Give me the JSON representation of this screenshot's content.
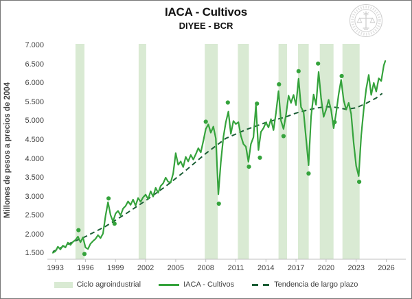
{
  "window": {
    "background": "#ffffff",
    "border_color": "#767676"
  },
  "header": {
    "title": "IACA - Cultivos",
    "subtitle": "DIYEE - BCR",
    "logo_name": "bolsa-de-comercio-de-rosario-seal"
  },
  "colors": {
    "series_line": "#35a33c",
    "trend_line": "#1b5e35",
    "cycle_band": "#d9ead3",
    "axis": "#bfbfbf",
    "tick_text": "#404040"
  },
  "chart_data": {
    "type": "line",
    "title": "IACA - Cultivos",
    "subtitle": "DIYEE - BCR",
    "xlabel": "",
    "ylabel": "Millones de pesos a precios de 2004",
    "grid": false,
    "legend_position": "bottom",
    "xlim": [
      1992.2,
      2027.95
    ],
    "ylim": [
      1.35,
      7.07
    ],
    "x_tick_labels": [
      "1993",
      "1996",
      "1999",
      "2002",
      "2005",
      "2008",
      "2011",
      "2014",
      "2017",
      "2020",
      "2023",
      "2026"
    ],
    "x_tick_values": [
      1993,
      1996,
      1999,
      2002,
      2005,
      2008,
      2011,
      2014,
      2017,
      2020,
      2023,
      2026
    ],
    "y_tick_labels": [
      "7.000",
      "6.500",
      "6.000",
      "5.500",
      "5.000",
      "4.500",
      "4.000",
      "3.500",
      "3.000",
      "2.500",
      "2.000",
      "1.500"
    ],
    "y_tick_values": [
      7.0,
      6.5,
      6.0,
      5.5,
      5.0,
      4.5,
      4.0,
      3.5,
      3.0,
      2.5,
      2.0,
      1.5
    ],
    "series": [
      {
        "name": "Ciclo agroindustrial",
        "type": "band",
        "color": "#d9ead3",
        "ranges": [
          [
            1995.0,
            1995.9
          ],
          [
            2001.3,
            2002.05
          ],
          [
            2007.9,
            2009.2
          ],
          [
            2011.2,
            2012.3
          ],
          [
            2015.25,
            2016.1
          ],
          [
            2017.2,
            2018.27
          ],
          [
            2019.37,
            2020.74
          ],
          [
            2021.63,
            2023.34
          ]
        ]
      },
      {
        "name": "IACA - Cultivos",
        "type": "line",
        "color": "#35a33c",
        "points": [
          [
            1992.75,
            1.52
          ],
          [
            1993,
            1.56
          ],
          [
            1993.25,
            1.68
          ],
          [
            1993.5,
            1.61
          ],
          [
            1993.75,
            1.71
          ],
          [
            1994,
            1.66
          ],
          [
            1994.25,
            1.79
          ],
          [
            1994.5,
            1.73
          ],
          [
            1994.75,
            1.81
          ],
          [
            1995,
            1.86
          ],
          [
            1995.25,
            1.95
          ],
          [
            1995.5,
            1.8
          ],
          [
            1995.75,
            1.93
          ],
          [
            1996,
            1.66
          ],
          [
            1996.25,
            1.62
          ],
          [
            1996.5,
            1.76
          ],
          [
            1996.75,
            1.83
          ],
          [
            1997,
            1.89
          ],
          [
            1997.25,
            1.99
          ],
          [
            1997.5,
            1.91
          ],
          [
            1997.75,
            2.03
          ],
          [
            1998,
            2.5
          ],
          [
            1998.25,
            2.86
          ],
          [
            1998.5,
            2.52
          ],
          [
            1998.75,
            2.35
          ],
          [
            1999,
            2.56
          ],
          [
            1999.25,
            2.63
          ],
          [
            1999.5,
            2.51
          ],
          [
            1999.75,
            2.69
          ],
          [
            2000,
            2.76
          ],
          [
            2000.25,
            2.88
          ],
          [
            2000.5,
            2.79
          ],
          [
            2000.75,
            2.93
          ],
          [
            2001,
            2.77
          ],
          [
            2001.25,
            2.97
          ],
          [
            2001.5,
            2.87
          ],
          [
            2001.75,
            2.99
          ],
          [
            2002,
            3.06
          ],
          [
            2002.25,
            2.94
          ],
          [
            2002.5,
            3.15
          ],
          [
            2002.75,
            3.01
          ],
          [
            2003,
            3.24
          ],
          [
            2003.25,
            3.11
          ],
          [
            2003.5,
            3.29
          ],
          [
            2003.75,
            3.36
          ],
          [
            2004,
            3.51
          ],
          [
            2004.25,
            3.4
          ],
          [
            2004.5,
            3.38
          ],
          [
            2004.75,
            3.62
          ],
          [
            2005,
            4.16
          ],
          [
            2005.25,
            3.85
          ],
          [
            2005.5,
            3.94
          ],
          [
            2005.75,
            3.79
          ],
          [
            2006,
            4.06
          ],
          [
            2006.25,
            3.94
          ],
          [
            2006.5,
            4.11
          ],
          [
            2006.75,
            3.99
          ],
          [
            2007,
            4.13
          ],
          [
            2007.25,
            4.29
          ],
          [
            2007.5,
            4.18
          ],
          [
            2007.75,
            4.48
          ],
          [
            2008,
            4.8
          ],
          [
            2008.25,
            4.92
          ],
          [
            2008.5,
            4.7
          ],
          [
            2008.75,
            4.86
          ],
          [
            2009,
            4.55
          ],
          [
            2009.25,
            3.07
          ],
          [
            2009.5,
            3.92
          ],
          [
            2009.75,
            4.58
          ],
          [
            2010,
            4.98
          ],
          [
            2010.25,
            5.26
          ],
          [
            2010.5,
            4.67
          ],
          [
            2010.75,
            5.01
          ],
          [
            2011,
            4.93
          ],
          [
            2011.25,
            4.98
          ],
          [
            2011.5,
            4.62
          ],
          [
            2011.75,
            4.4
          ],
          [
            2012,
            4.33
          ],
          [
            2012.25,
            3.93
          ],
          [
            2012.5,
            4.4
          ],
          [
            2012.75,
            4.58
          ],
          [
            2013,
            5.43
          ],
          [
            2013.25,
            4.24
          ],
          [
            2013.5,
            4.72
          ],
          [
            2013.75,
            4.82
          ],
          [
            2014,
            4.97
          ],
          [
            2014.25,
            4.84
          ],
          [
            2014.5,
            5.06
          ],
          [
            2014.75,
            4.77
          ],
          [
            2015,
            5.22
          ],
          [
            2015.25,
            5.8
          ],
          [
            2015.5,
            5.02
          ],
          [
            2015.75,
            4.8
          ],
          [
            2016,
            5.17
          ],
          [
            2016.25,
            5.68
          ],
          [
            2016.5,
            5.49
          ],
          [
            2016.75,
            5.7
          ],
          [
            2017,
            5.43
          ],
          [
            2017.25,
            6.13
          ],
          [
            2017.5,
            5.38
          ],
          [
            2017.75,
            5.25
          ],
          [
            2018,
            4.55
          ],
          [
            2018.25,
            3.84
          ],
          [
            2018.5,
            5.12
          ],
          [
            2018.75,
            5.71
          ],
          [
            2019,
            5.44
          ],
          [
            2019.25,
            6.31
          ],
          [
            2019.5,
            5.62
          ],
          [
            2019.75,
            5.12
          ],
          [
            2020,
            5.31
          ],
          [
            2020.25,
            5.57
          ],
          [
            2020.5,
            5.3
          ],
          [
            2020.75,
            4.82
          ],
          [
            2021,
            5.22
          ],
          [
            2021.25,
            5.72
          ],
          [
            2021.5,
            6.1
          ],
          [
            2021.75,
            5.56
          ],
          [
            2022,
            5.31
          ],
          [
            2022.25,
            5.49
          ],
          [
            2022.5,
            5.2
          ],
          [
            2022.75,
            4.42
          ],
          [
            2023,
            3.82
          ],
          [
            2023.25,
            3.55
          ],
          [
            2023.5,
            4.62
          ],
          [
            2023.75,
            5.32
          ],
          [
            2024,
            5.86
          ],
          [
            2024.25,
            6.23
          ],
          [
            2024.5,
            5.7
          ],
          [
            2024.75,
            6.02
          ],
          [
            2025,
            5.79
          ],
          [
            2025.25,
            6.14
          ],
          [
            2025.5,
            6.07
          ],
          [
            2025.75,
            6.48
          ],
          [
            2025.9,
            6.6
          ]
        ]
      },
      {
        "name": "IACA - Cultivos (extremos anuales)",
        "type": "scatter",
        "color": "#35a33c",
        "points": [
          [
            1995.3,
            2.12
          ],
          [
            1995.9,
            1.49
          ],
          [
            1998.3,
            2.96
          ],
          [
            1998.9,
            2.29
          ],
          [
            2008.0,
            4.99
          ],
          [
            2009.3,
            2.82
          ],
          [
            2010.2,
            5.5
          ],
          [
            2012.3,
            3.8
          ],
          [
            2013.1,
            5.47
          ],
          [
            2013.4,
            4.04
          ],
          [
            2015.3,
            5.98
          ],
          [
            2015.75,
            4.61
          ],
          [
            2017.25,
            6.33
          ],
          [
            2018.25,
            3.62
          ],
          [
            2019.2,
            6.53
          ],
          [
            2020.85,
            4.98
          ],
          [
            2021.55,
            6.2
          ],
          [
            2023.3,
            3.4
          ]
        ]
      },
      {
        "name": "Tendencia de largo plazo",
        "type": "dashed-line",
        "color": "#1b5e35",
        "points": [
          [
            1992.75,
            1.55
          ],
          [
            1994,
            1.72
          ],
          [
            1996,
            1.95
          ],
          [
            1998,
            2.22
          ],
          [
            2000,
            2.55
          ],
          [
            2002,
            2.9
          ],
          [
            2004,
            3.28
          ],
          [
            2006,
            3.7
          ],
          [
            2008,
            4.15
          ],
          [
            2010,
            4.55
          ],
          [
            2012,
            4.78
          ],
          [
            2014,
            4.97
          ],
          [
            2016,
            5.12
          ],
          [
            2017,
            5.22
          ],
          [
            2018,
            5.29
          ],
          [
            2019,
            5.35
          ],
          [
            2020,
            5.39
          ],
          [
            2021,
            5.37
          ],
          [
            2022,
            5.32
          ],
          [
            2023,
            5.36
          ],
          [
            2024,
            5.48
          ],
          [
            2025,
            5.62
          ],
          [
            2025.6,
            5.74
          ]
        ]
      }
    ],
    "legend": [
      {
        "label": "Ciclo agroindustrial",
        "swatch": "band"
      },
      {
        "label": "IACA - Cultivos",
        "swatch": "line"
      },
      {
        "label": "Tendencia de largo plazo",
        "swatch": "dash"
      }
    ]
  }
}
